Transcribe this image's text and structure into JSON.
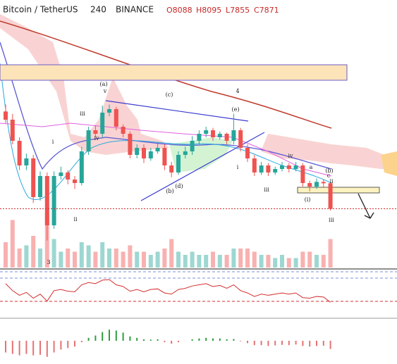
{
  "header": {
    "symbol": "Bitcoin / TetherUS",
    "interval": "240",
    "exchange": "BINANCE",
    "open": "O8088",
    "high": "H8095",
    "low": "L7855",
    "close": "C7871"
  },
  "chart_data": {
    "type": "candlestick",
    "ylim": [
      7370,
      9650
    ],
    "up_color": "#26a69a",
    "down_color": "#ef5350",
    "open": [
      8700,
      8630,
      8450,
      8240,
      8300,
      7970,
      8150,
      7730,
      8150,
      8180,
      8120,
      8090,
      8360,
      8540,
      8510,
      8690,
      8720,
      8570,
      8510,
      8330,
      8390,
      8300,
      8360,
      8390,
      8240,
      8180,
      8330,
      8360,
      8450,
      8510,
      8540,
      8480,
      8510,
      8450,
      8540,
      8390,
      8300,
      8180,
      8240,
      8180,
      8210,
      8240,
      8210,
      8240,
      8090,
      8060,
      8100,
      8088
    ],
    "high": [
      8760,
      8680,
      8480,
      8340,
      8330,
      8190,
      8180,
      8190,
      8230,
      8200,
      8150,
      8400,
      8570,
      8580,
      8750,
      8760,
      8740,
      8590,
      8530,
      8420,
      8420,
      8390,
      8440,
      8420,
      8270,
      8360,
      8400,
      8490,
      8540,
      8570,
      8560,
      8530,
      8520,
      8680,
      8560,
      8420,
      8330,
      8270,
      8260,
      8230,
      8270,
      8260,
      8270,
      8260,
      8110,
      8130,
      8120,
      8095
    ],
    "low": [
      8600,
      8420,
      8200,
      8200,
      7920,
      7940,
      7600,
      7700,
      8120,
      8080,
      8040,
      8070,
      8330,
      8480,
      8480,
      8660,
      8540,
      8480,
      8300,
      8300,
      8260,
      8280,
      8340,
      8200,
      8140,
      8160,
      8300,
      8330,
      8420,
      8480,
      8450,
      8460,
      8420,
      8420,
      8360,
      8270,
      8150,
      8160,
      8150,
      8160,
      8190,
      8180,
      8190,
      8060,
      8020,
      8040,
      8050,
      7855
    ],
    "close": [
      8630,
      8450,
      8240,
      8300,
      7970,
      8150,
      7730,
      8150,
      8180,
      8120,
      8090,
      8360,
      8540,
      8510,
      8690,
      8720,
      8570,
      8510,
      8330,
      8390,
      8300,
      8360,
      8390,
      8240,
      8180,
      8330,
      8360,
      8450,
      8510,
      8540,
      8480,
      8510,
      8450,
      8540,
      8390,
      8300,
      8180,
      8240,
      8180,
      8210,
      8240,
      8210,
      8240,
      8090,
      8060,
      8100,
      8088,
      7871
    ],
    "volume": [
      40,
      75,
      30,
      35,
      50,
      30,
      85,
      45,
      25,
      30,
      25,
      40,
      35,
      25,
      40,
      30,
      30,
      25,
      35,
      25,
      25,
      20,
      25,
      30,
      45,
      25,
      20,
      25,
      20,
      20,
      25,
      20,
      20,
      30,
      30,
      30,
      25,
      20,
      20,
      15,
      20,
      15,
      15,
      25,
      25,
      20,
      20,
      45
    ],
    "volume_ylim": [
      0,
      100
    ],
    "rsi": [
      60,
      48,
      40,
      45,
      35,
      42,
      30,
      48,
      50,
      47,
      46,
      58,
      62,
      60,
      66,
      67,
      58,
      55,
      47,
      50,
      46,
      50,
      51,
      44,
      42,
      50,
      52,
      56,
      58,
      60,
      55,
      57,
      52,
      58,
      48,
      44,
      38,
      42,
      40,
      42,
      44,
      42,
      44,
      36,
      35,
      38,
      37,
      28
    ],
    "rsi_ylim": [
      3,
      78
    ],
    "rsi_color": "#d32f2f",
    "macd_hist": [
      -40,
      -45,
      -50,
      -45,
      -50,
      -48,
      -55,
      -40,
      -30,
      -25,
      -20,
      -5,
      10,
      18,
      30,
      38,
      35,
      28,
      15,
      10,
      5,
      4,
      5,
      -5,
      -10,
      -5,
      0,
      5,
      8,
      10,
      8,
      8,
      5,
      6,
      -2,
      -8,
      -15,
      -15,
      -18,
      -16,
      -14,
      -15,
      -13,
      -18,
      -20,
      -18,
      -17,
      -28
    ],
    "macd_ylim": [
      -70,
      70
    ],
    "annotations": [
      "(a)",
      "v",
      "(c)",
      "4",
      "(e)",
      "iii",
      "i",
      "iv",
      "ii",
      "3",
      "(b)",
      "(d)",
      "i",
      "iii",
      "iv",
      "a",
      "(b)",
      "c",
      "ii",
      "(i)",
      "iii"
    ]
  }
}
